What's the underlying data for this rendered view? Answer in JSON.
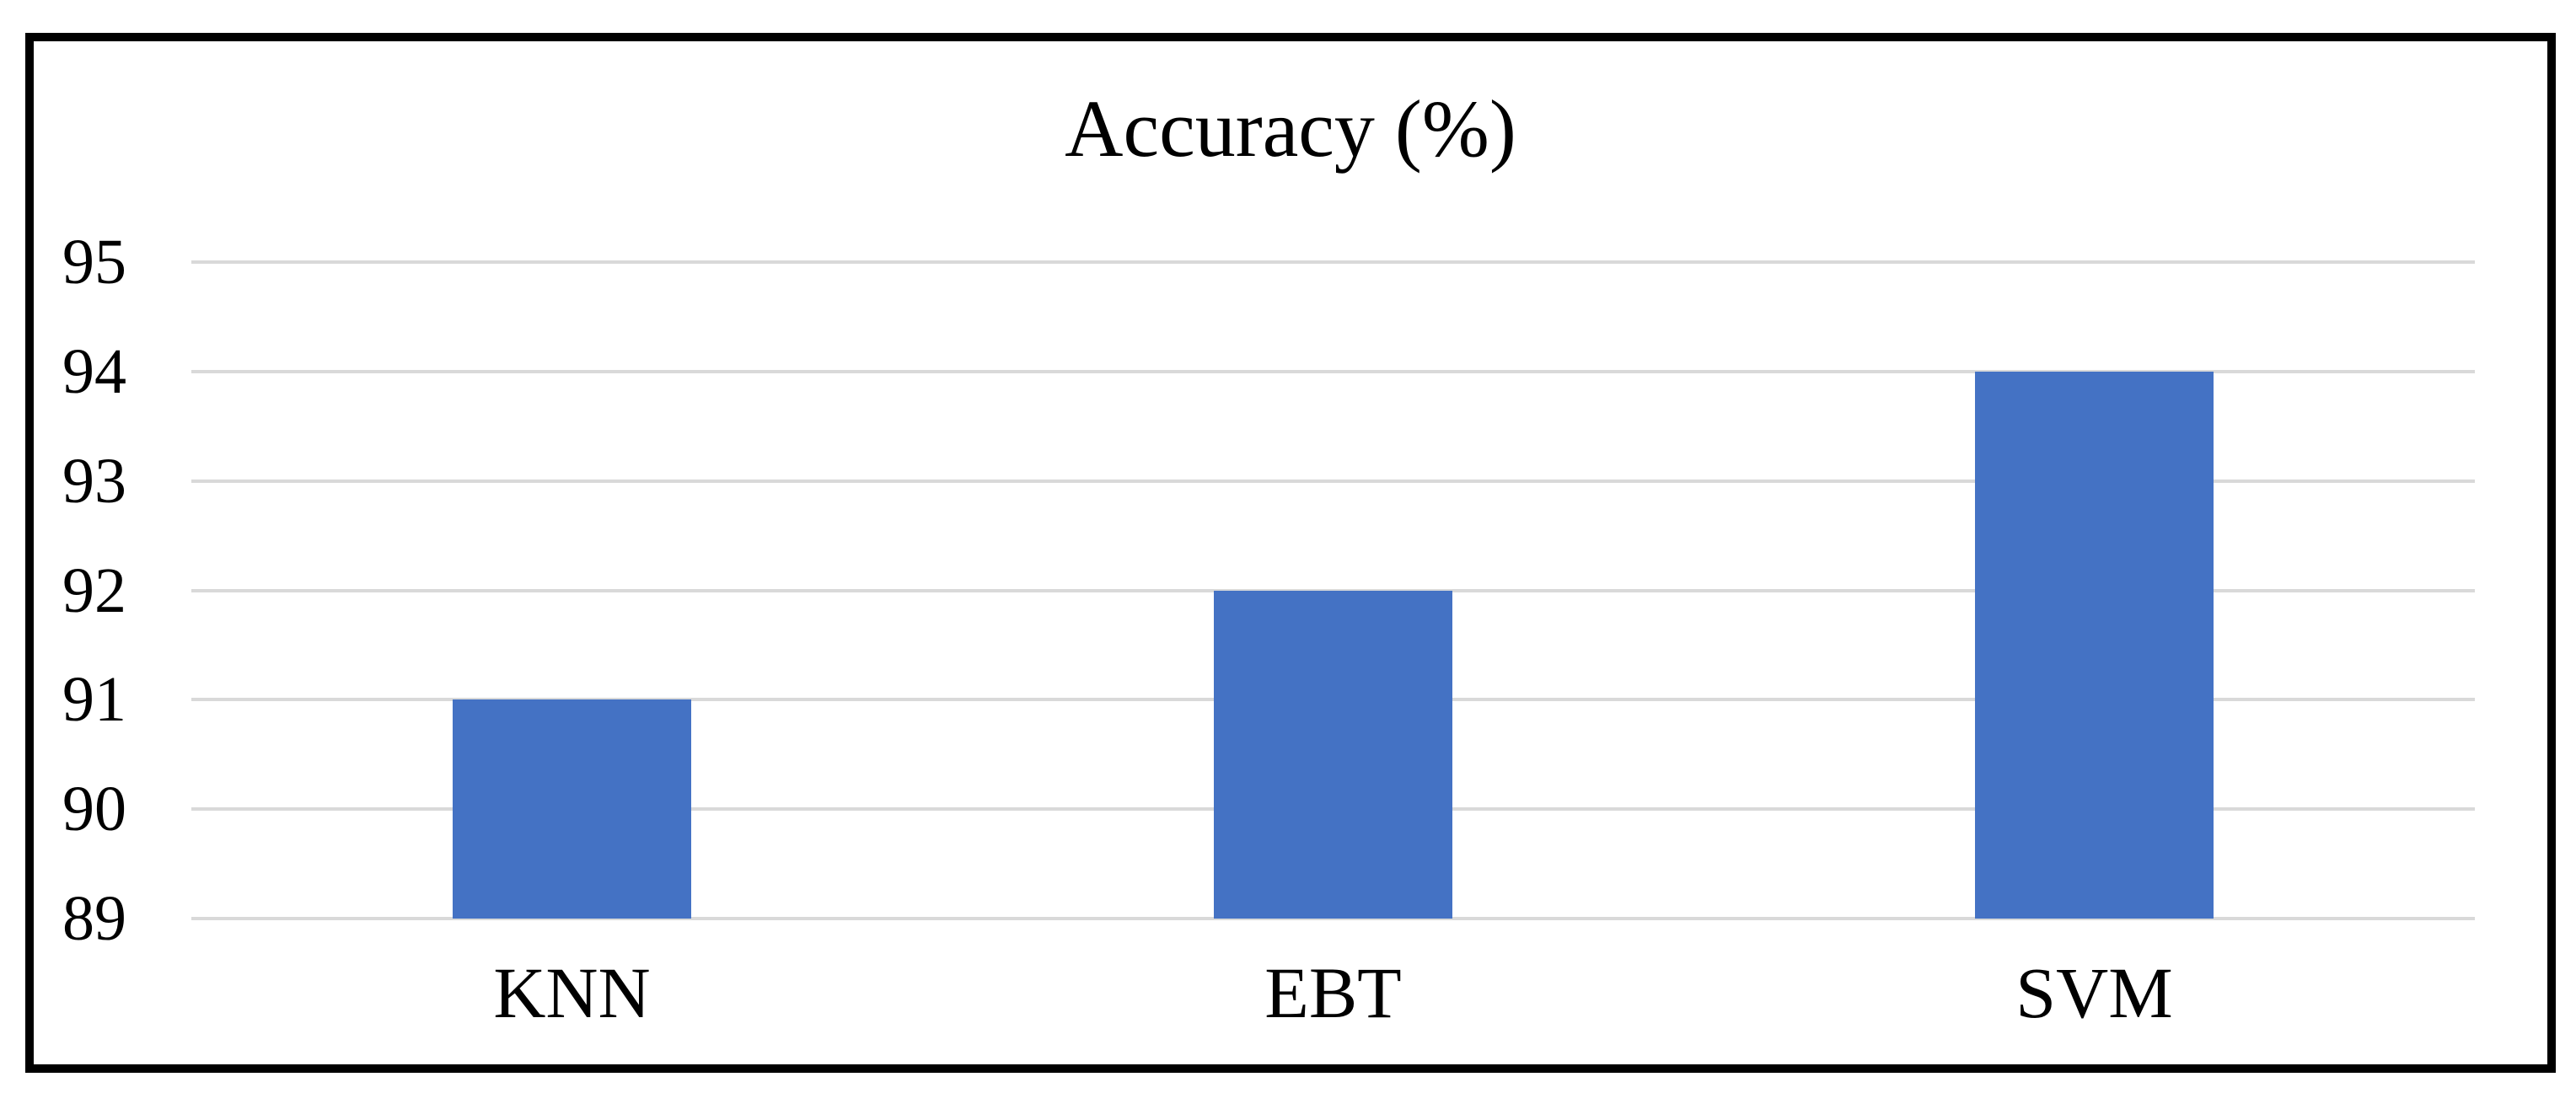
{
  "chart_data": {
    "type": "bar",
    "title": "Accuracy (%)",
    "categories": [
      "KNN",
      "EBT",
      "SVM"
    ],
    "values": [
      91,
      92,
      94
    ],
    "yticks": [
      95,
      94,
      93,
      92,
      91,
      90,
      89
    ],
    "ylim": [
      89,
      95
    ],
    "xlabel": "",
    "ylabel": "",
    "grid": "horizontal-only",
    "legend": "none",
    "bar_color": "#4472C4",
    "gridline_color": "#D9D9D9",
    "frame_color": "#000000",
    "background_color": "#FFFFFF",
    "text_color": "#000000"
  }
}
